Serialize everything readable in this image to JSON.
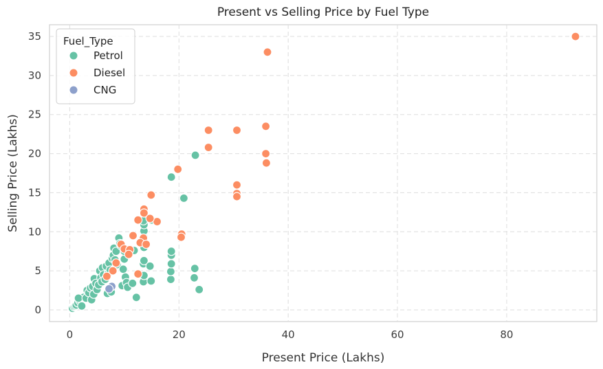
{
  "chart_data": {
    "type": "scatter",
    "title": "Present vs Selling Price by Fuel Type",
    "xlabel": "Present Price (Lakhs)",
    "ylabel": "Selling Price (Lakhs)",
    "xlim": [
      -3.7,
      96.5
    ],
    "ylim": [
      -1.5,
      36.5
    ],
    "xticks": [
      0,
      20,
      40,
      60,
      80
    ],
    "yticks": [
      0,
      5,
      10,
      15,
      20,
      25,
      30,
      35
    ],
    "grid": true,
    "legend_title": "Fuel_Type",
    "legend_position": "top-left",
    "series": [
      {
        "name": "Petrol",
        "color": "#66c2a5",
        "points": [
          [
            0.5,
            0.2
          ],
          [
            0.8,
            0.4
          ],
          [
            1.0,
            0.5
          ],
          [
            1.2,
            0.6
          ],
          [
            1.5,
            0.9
          ],
          [
            1.8,
            1.2
          ],
          [
            2.0,
            1.4
          ],
          [
            2.2,
            0.5
          ],
          [
            2.5,
            1.6
          ],
          [
            1.6,
            1.5
          ],
          [
            3.0,
            1.5
          ],
          [
            3.2,
            2.5
          ],
          [
            3.5,
            2.2
          ],
          [
            3.8,
            2.8
          ],
          [
            4.0,
            1.3
          ],
          [
            4.2,
            3.0
          ],
          [
            4.4,
            2.0
          ],
          [
            4.5,
            4.0
          ],
          [
            4.8,
            3.4
          ],
          [
            5.0,
            2.6
          ],
          [
            5.3,
            3.2
          ],
          [
            5.5,
            5.0
          ],
          [
            5.7,
            4.1
          ],
          [
            5.9,
            3.6
          ],
          [
            6.0,
            5.4
          ],
          [
            6.2,
            4.5
          ],
          [
            6.5,
            3.9
          ],
          [
            6.7,
            5.6
          ],
          [
            6.9,
            2.1
          ],
          [
            7.0,
            4.6
          ],
          [
            7.2,
            6.0
          ],
          [
            7.4,
            5.1
          ],
          [
            7.6,
            2.3
          ],
          [
            7.8,
            6.6
          ],
          [
            8.0,
            7.0
          ],
          [
            8.1,
            7.9
          ],
          [
            8.3,
            6.4
          ],
          [
            8.5,
            7.5
          ],
          [
            8.7,
            5.8
          ],
          [
            9.0,
            9.2
          ],
          [
            9.2,
            8.5
          ],
          [
            9.4,
            8.2
          ],
          [
            9.6,
            3.1
          ],
          [
            9.8,
            5.2
          ],
          [
            10.0,
            6.5
          ],
          [
            10.2,
            4.2
          ],
          [
            10.4,
            3.5
          ],
          [
            10.6,
            2.9
          ],
          [
            10.0,
            7.5
          ],
          [
            11.5,
            3.4
          ],
          [
            11.8,
            7.6
          ],
          [
            12.2,
            1.6
          ],
          [
            13.5,
            3.6
          ],
          [
            13.6,
            4.4
          ],
          [
            13.5,
            5.9
          ],
          [
            13.6,
            6.3
          ],
          [
            13.6,
            8.0
          ],
          [
            13.6,
            9.3
          ],
          [
            13.6,
            10.1
          ],
          [
            13.6,
            10.9
          ],
          [
            13.5,
            11.4
          ],
          [
            14.7,
            5.6
          ],
          [
            14.9,
            3.7
          ],
          [
            15.0,
            11.5
          ],
          [
            18.5,
            3.9
          ],
          [
            18.5,
            4.9
          ],
          [
            18.6,
            5.9
          ],
          [
            18.6,
            7.0
          ],
          [
            18.6,
            7.5
          ],
          [
            18.6,
            17.0
          ],
          [
            20.9,
            14.3
          ],
          [
            22.8,
            4.1
          ],
          [
            22.9,
            5.3
          ],
          [
            23.0,
            19.8
          ],
          [
            23.7,
            2.6
          ]
        ]
      },
      {
        "name": "Diesel",
        "color": "#fc8d62",
        "points": [
          [
            92.6,
            35.0
          ],
          [
            36.2,
            33.0
          ],
          [
            35.9,
            23.5
          ],
          [
            30.6,
            23.0
          ],
          [
            25.4,
            23.0
          ],
          [
            25.4,
            20.8
          ],
          [
            35.9,
            20.0
          ],
          [
            19.8,
            18.0
          ],
          [
            36.0,
            18.8
          ],
          [
            30.6,
            16.0
          ],
          [
            30.6,
            14.9
          ],
          [
            30.6,
            14.5
          ],
          [
            14.9,
            14.7
          ],
          [
            13.6,
            12.9
          ],
          [
            13.6,
            12.4
          ],
          [
            12.5,
            11.5
          ],
          [
            16.0,
            11.3
          ],
          [
            14.7,
            11.7
          ],
          [
            20.5,
            9.7
          ],
          [
            20.4,
            9.3
          ],
          [
            11.6,
            9.5
          ],
          [
            13.5,
            9.2
          ],
          [
            12.9,
            8.6
          ],
          [
            14.0,
            8.4
          ],
          [
            9.4,
            8.4
          ],
          [
            10.0,
            7.8
          ],
          [
            11.0,
            7.7
          ],
          [
            8.5,
            6.0
          ],
          [
            12.5,
            4.6
          ],
          [
            7.9,
            5.0
          ],
          [
            6.8,
            4.3
          ],
          [
            10.8,
            7.1
          ]
        ]
      },
      {
        "name": "CNG",
        "color": "#8da0cb",
        "points": [
          [
            7.7,
            3.0
          ],
          [
            7.2,
            2.7
          ]
        ]
      }
    ]
  }
}
